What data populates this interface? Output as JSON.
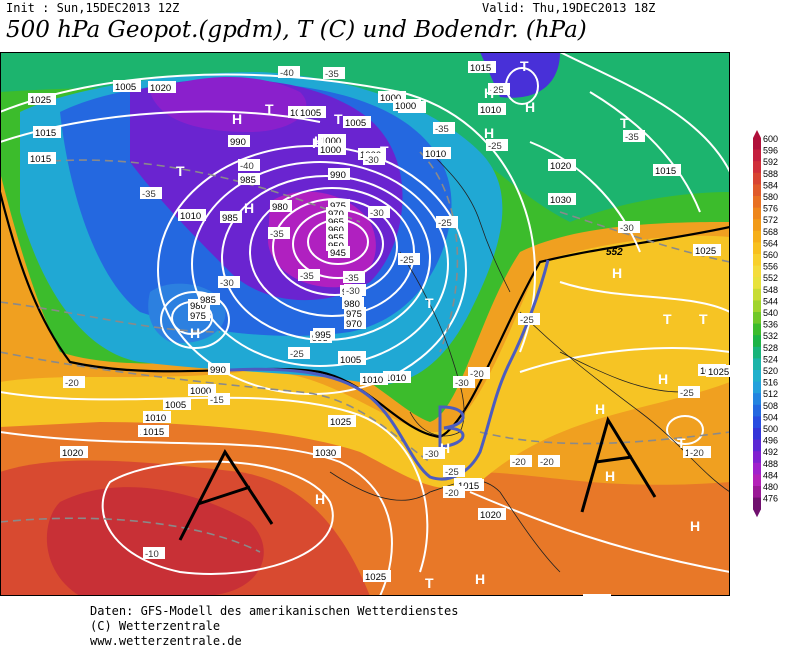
{
  "header": {
    "init": "Init : Sun,15DEC2013 12Z",
    "valid": "Valid: Thu,19DEC2013 18Z",
    "title": "500 hPa Geopot.(gpdm), T (C) und Bodendr. (hPa)"
  },
  "footer": {
    "line1": "Daten: GFS-Modell des amerikanischen Wetterdienstes",
    "line2": "(C) Wetterzentrale",
    "line3": "www.wetterzentrale.de"
  },
  "legend": {
    "values": [
      "600",
      "596",
      "592",
      "588",
      "584",
      "580",
      "576",
      "572",
      "568",
      "564",
      "560",
      "556",
      "552",
      "548",
      "544",
      "540",
      "536",
      "532",
      "528",
      "524",
      "520",
      "516",
      "512",
      "508",
      "504",
      "500",
      "496",
      "492",
      "488",
      "484",
      "480",
      "476"
    ],
    "colors": [
      "#b0103a",
      "#c41f3e",
      "#d02f3a",
      "#d84432",
      "#e05a2a",
      "#e87022",
      "#ee861c",
      "#f29a18",
      "#f6ae18",
      "#f8c01e",
      "#f8d02c",
      "#f4dc3c",
      "#e8e23c",
      "#c8dc34",
      "#a0d42c",
      "#70c828",
      "#3cbc2c",
      "#1cb446",
      "#18b47a",
      "#1cb4a8",
      "#20b0cc",
      "#24a0dc",
      "#2484e0",
      "#2468e0",
      "#284ce0",
      "#3434d8",
      "#5c28d4",
      "#8020d0",
      "#a020cc",
      "#b420b8",
      "#9a1896",
      "#70106e"
    ]
  },
  "map": {
    "pressure_labels": [
      "1025",
      "1020",
      "1015",
      "1005",
      "1000",
      "995",
      "1000",
      "990",
      "1005",
      "1015",
      "1010",
      "1005",
      "1000",
      "985",
      "980",
      "975",
      "970",
      "965",
      "960",
      "955",
      "950",
      "945",
      "985",
      "980",
      "975",
      "985",
      "990",
      "995",
      "1005",
      "1010",
      "1000",
      "1005",
      "1010",
      "1015",
      "1020",
      "1025",
      "1030",
      "1020",
      "1015",
      "1030",
      "1025",
      "1020",
      "1020",
      "1025",
      "1010",
      "1015",
      "1025",
      "1020",
      "1020",
      "1000",
      "1005",
      "1010",
      "985",
      "980",
      "975",
      "970",
      "995",
      "990",
      "1000",
      "1005",
      "1000",
      "1010",
      "1015",
      "1015",
      "1025"
    ],
    "temp_labels": [
      "-40",
      "-35",
      "-35",
      "-40",
      "-35",
      "-30",
      "-35",
      "-30",
      "-25",
      "-25",
      "-30",
      "-35",
      "-35",
      "-30",
      "-25",
      "-20",
      "-15",
      "-20",
      "-25",
      "-30",
      "-30",
      "-25",
      "-20",
      "-20",
      "-10",
      "-25",
      "-20",
      "-30",
      "-35",
      "-25",
      "-20",
      "-25"
    ],
    "pressure_centers": [
      "H",
      "H",
      "H",
      "T",
      "T",
      "T",
      "H",
      "H",
      "T",
      "H",
      "T",
      "H",
      "T",
      "T",
      "H",
      "H",
      "H",
      "H",
      "T",
      "H",
      "T",
      "H",
      "H",
      "T",
      "T",
      "H",
      "H"
    ],
    "geopot_552": "552",
    "annotation_a_left": "A",
    "annotation_a_right": "A",
    "annotation_b": "B"
  }
}
